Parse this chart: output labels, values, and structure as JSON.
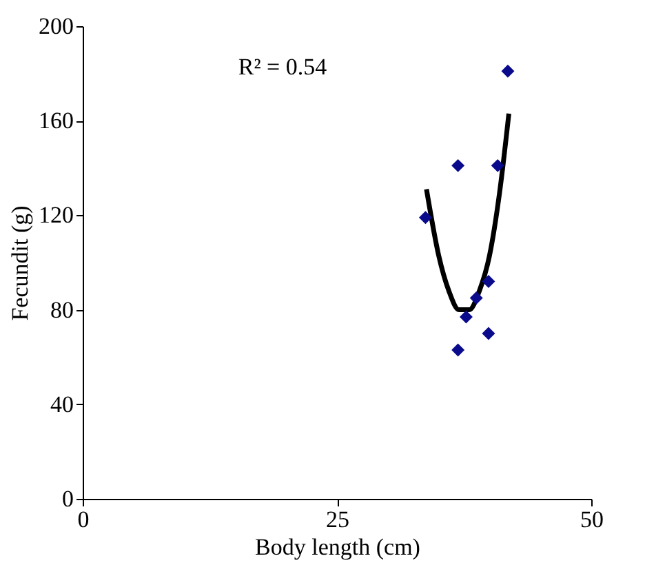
{
  "chart_data": {
    "type": "scatter",
    "xlabel": "Body length (cm)",
    "ylabel": "Fecundit (g)",
    "annotations": [
      "R² = 0.54"
    ],
    "xlim": [
      0,
      50
    ],
    "xticks": [
      0,
      25,
      50
    ],
    "ylim": [
      0,
      200
    ],
    "yticks": [
      0,
      40,
      80,
      120,
      160,
      200
    ],
    "grid": false,
    "series": [
      {
        "marker": "diamond",
        "color": "#0a0a8c",
        "x": [
          33.7,
          36.9,
          40.8,
          41.8,
          39.9,
          38.7,
          37.7,
          39.9,
          36.9
        ],
        "values": [
          119,
          141,
          141,
          181,
          92,
          85,
          77,
          70,
          63
        ]
      },
      {
        "type": "line",
        "color": "#000000",
        "line_style": "solid",
        "x": [
          33.8,
          35,
          36,
          37,
          38,
          39,
          40,
          41,
          41.9
        ],
        "values": [
          131,
          103,
          88,
          80,
          80,
          88,
          103,
          130,
          163
        ]
      }
    ]
  }
}
